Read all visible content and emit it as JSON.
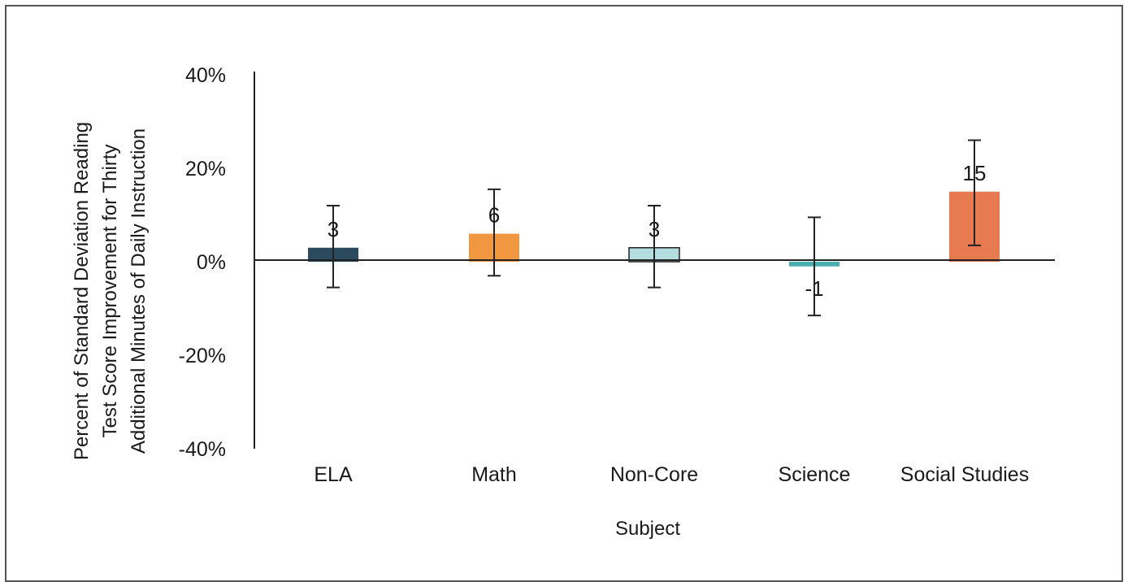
{
  "chart_data": {
    "type": "bar",
    "title": "",
    "xlabel": "Subject",
    "ylabel_lines": [
      "Percent of Standard Deviation Reading",
      "Test Score Improvement for Thirty",
      "Additional Minutes of Daily Instruction"
    ],
    "ylim": [
      -40,
      40
    ],
    "yticks": [
      40,
      20,
      0,
      -20,
      -40
    ],
    "ytick_labels": [
      "40%",
      "20%",
      "0%",
      "-20%",
      "-40%"
    ],
    "grid": false,
    "legend": "none",
    "categories": [
      "ELA",
      "Math",
      "Non-Core",
      "Science",
      "Social Studies"
    ],
    "values": [
      3,
      6,
      3,
      -1,
      15
    ],
    "data_labels": [
      "3",
      "6",
      "3",
      "-1",
      "15"
    ],
    "error_low": [
      -5.5,
      -3,
      -5.5,
      -11.5,
      3.5
    ],
    "error_high": [
      12,
      15.5,
      12,
      9.5,
      26
    ],
    "colors": [
      "#2c4a5e",
      "#f0973f",
      "#b4dde0",
      "#4aaeb0",
      "#e87a52"
    ]
  }
}
